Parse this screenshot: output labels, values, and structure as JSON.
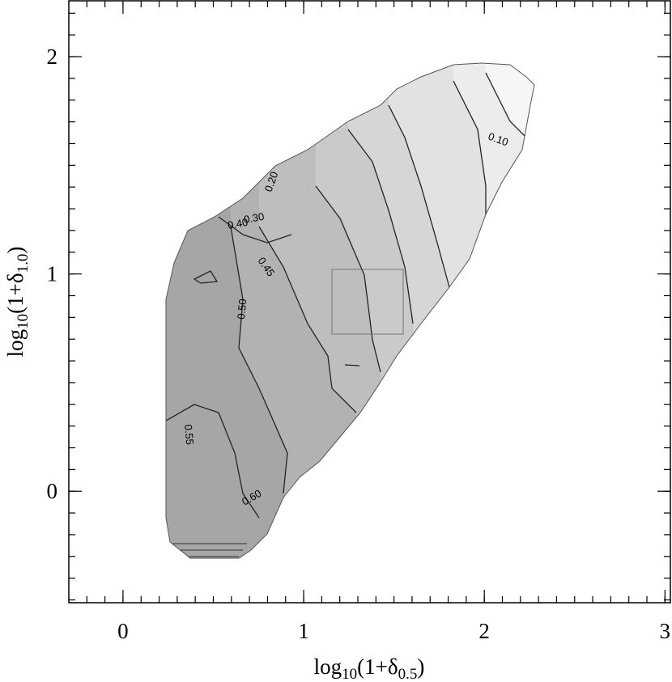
{
  "chart_data": {
    "type": "contour",
    "xlabel": [
      "log",
      "10",
      "(1+δ",
      "0.5",
      ")"
    ],
    "ylabel": [
      "log",
      "10",
      "(1+δ",
      "1.0",
      ")"
    ],
    "xlim": [
      -0.3,
      3.03
    ],
    "ylim": [
      -0.513,
      2.257
    ],
    "xticks": [
      0,
      1,
      2,
      3
    ],
    "yticks": [
      0,
      1,
      2
    ],
    "minor_tick_step": 0.1,
    "contour_labels": [
      "0.10",
      "0.20",
      "0.30",
      "0.40",
      "0.45",
      "0.50",
      "0.55",
      "0.60"
    ]
  }
}
